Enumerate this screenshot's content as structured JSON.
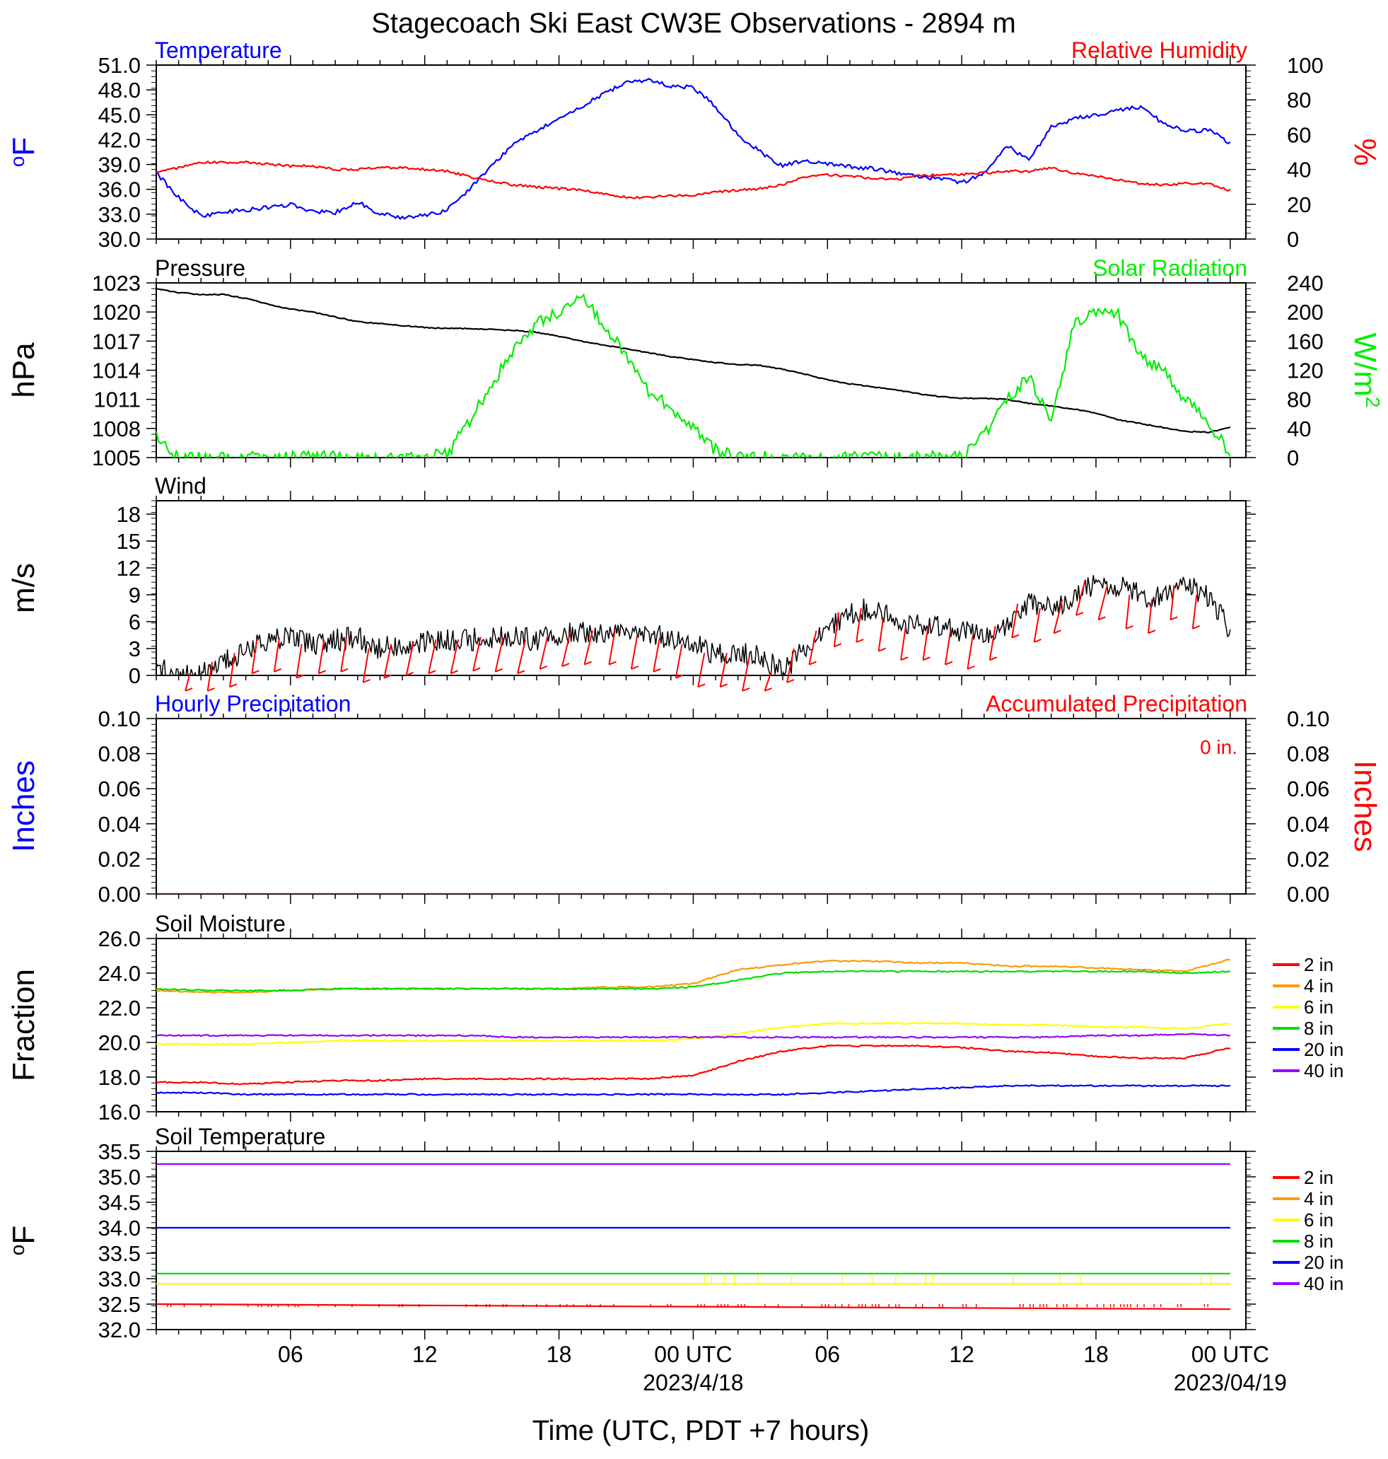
{
  "title": "Stagecoach Ski East CW3E Observations - 2894 m",
  "xaxis": {
    "ticks": [
      "06",
      "12",
      "18",
      "00 UTC",
      "06",
      "12",
      "18",
      "00 UTC"
    ],
    "dates": [
      "2023/4/18",
      "2023/04/19"
    ],
    "label": "Time (UTC, PDT +7 hours)"
  },
  "colors": {
    "temp": "#0000ff",
    "rh": "#ff0000",
    "pressure": "#000000",
    "solar": "#00ee00",
    "wind": "#000000",
    "barb": "#ff0000",
    "d2": "#ff0000",
    "d4": "#ff9900",
    "d6": "#ffff00",
    "d8": "#00dd00",
    "d20": "#0000ff",
    "d40": "#9900ff"
  },
  "chart_data": [
    {
      "type": "line",
      "title_left": "Temperature",
      "title_right": "Relative Humidity",
      "ylabel_left": "oF",
      "ylabel_right": "%",
      "ylim_left": [
        30,
        51
      ],
      "ylim_right": [
        0,
        100
      ],
      "yticks_left": [
        "51.0",
        "48.0",
        "45.0",
        "42.0",
        "39.0",
        "36.0",
        "33.0",
        "30.0"
      ],
      "yticks_right": [
        "100",
        "80",
        "60",
        "40",
        "20",
        "0"
      ],
      "x_hours": [
        0,
        1,
        2,
        3,
        4,
        5,
        6,
        7,
        8,
        9,
        10,
        11,
        12,
        13,
        14,
        15,
        16,
        17,
        18,
        19,
        20,
        21,
        22,
        23,
        24,
        25,
        26,
        27,
        28,
        29,
        30,
        31,
        32,
        33,
        34,
        35,
        36,
        37,
        38,
        39,
        40,
        41,
        42,
        43,
        44,
        45,
        46,
        47,
        48
      ],
      "series": [
        {
          "name": "Temperature",
          "axis": "left",
          "values": [
            38.0,
            35.0,
            32.8,
            33.3,
            33.5,
            33.8,
            34.2,
            33.3,
            33.2,
            34.5,
            33.0,
            32.6,
            32.8,
            33.5,
            36.0,
            38.8,
            41.5,
            43.0,
            44.5,
            46.0,
            47.5,
            49.0,
            49.2,
            48.5,
            48.3,
            46.0,
            42.5,
            40.5,
            38.8,
            39.5,
            39.0,
            38.7,
            38.5,
            38.0,
            37.5,
            37.3,
            36.8,
            38.0,
            41.3,
            39.5,
            43.5,
            44.5,
            45.0,
            45.5,
            46.0,
            44.0,
            43.0,
            43.2,
            41.6
          ]
        },
        {
          "name": "Relative Humidity",
          "axis": "right",
          "values": [
            38,
            41,
            44,
            44,
            44,
            43,
            42,
            42,
            40,
            40,
            41,
            41,
            40,
            39,
            36,
            33,
            31,
            30,
            29,
            28,
            26,
            24,
            24,
            25,
            25,
            27,
            28,
            29,
            31,
            36,
            37,
            36,
            35,
            34,
            36,
            37,
            37,
            38,
            39,
            39,
            41,
            38,
            36,
            34,
            32,
            31,
            32,
            32,
            28
          ]
        }
      ]
    },
    {
      "type": "line",
      "title_left": "Pressure",
      "title_right": "Solar Radiation",
      "ylabel_left": "hPa",
      "ylabel_right": "W/m2",
      "ylim_left": [
        1005,
        1023
      ],
      "ylim_right": [
        0,
        240
      ],
      "yticks_left": [
        "1023",
        "1020",
        "1017",
        "1014",
        "1011",
        "1008",
        "1005"
      ],
      "yticks_right": [
        "240",
        "200",
        "160",
        "120",
        "80",
        "40",
        "0"
      ],
      "x_hours": [
        0,
        1,
        2,
        3,
        4,
        5,
        6,
        7,
        8,
        9,
        10,
        11,
        12,
        13,
        14,
        15,
        16,
        17,
        18,
        19,
        20,
        21,
        22,
        23,
        24,
        25,
        26,
        27,
        28,
        29,
        30,
        31,
        32,
        33,
        34,
        35,
        36,
        37,
        38,
        39,
        40,
        41,
        42,
        43,
        44,
        45,
        46,
        47,
        48
      ],
      "series": [
        {
          "name": "Pressure",
          "axis": "left",
          "values": [
            1022.4,
            1022.0,
            1021.8,
            1021.8,
            1021.4,
            1020.8,
            1020.3,
            1020.0,
            1019.5,
            1019.0,
            1018.8,
            1018.6,
            1018.4,
            1018.3,
            1018.3,
            1018.2,
            1018.1,
            1017.9,
            1017.5,
            1017.0,
            1016.6,
            1016.2,
            1015.8,
            1015.4,
            1015.1,
            1014.8,
            1014.6,
            1014.5,
            1014.1,
            1013.6,
            1013.0,
            1012.6,
            1012.3,
            1012.0,
            1011.6,
            1011.3,
            1011.1,
            1011.1,
            1011.0,
            1010.6,
            1010.3,
            1010.0,
            1009.6,
            1008.9,
            1008.5,
            1008.1,
            1007.7,
            1007.6,
            1008.1
          ]
        },
        {
          "name": "Solar Radiation",
          "axis": "right",
          "values": [
            28,
            0,
            0,
            0,
            0,
            0,
            0,
            0,
            0,
            0,
            0,
            0,
            0,
            5,
            50,
            100,
            150,
            185,
            200,
            220,
            185,
            140,
            90,
            70,
            40,
            10,
            0,
            0,
            0,
            0,
            0,
            0,
            0,
            0,
            0,
            0,
            0,
            30,
            80,
            110,
            50,
            180,
            200,
            195,
            140,
            120,
            80,
            50,
            5
          ]
        }
      ]
    },
    {
      "type": "line",
      "title_left": "Wind",
      "ylabel_left": "m/s",
      "ylim_left": [
        0,
        19.5
      ],
      "yticks_left": [
        "18",
        "15",
        "12",
        "9",
        "6",
        "3",
        "0"
      ],
      "x_hours": [
        0,
        1,
        2,
        3,
        4,
        5,
        6,
        7,
        8,
        9,
        10,
        11,
        12,
        13,
        14,
        15,
        16,
        17,
        18,
        19,
        20,
        21,
        22,
        23,
        24,
        25,
        26,
        27,
        28,
        29,
        30,
        31,
        32,
        33,
        34,
        35,
        36,
        37,
        38,
        39,
        40,
        41,
        42,
        43,
        44,
        45,
        46,
        47,
        48
      ],
      "series": [
        {
          "name": "Wind speed",
          "axis": "left",
          "values": [
            0.8,
            0.3,
            0.2,
            1.5,
            2.5,
            4.0,
            4.2,
            3.5,
            4.0,
            4.2,
            3.0,
            3.5,
            3.8,
            4.0,
            4.0,
            4.3,
            4.2,
            4.0,
            4.5,
            4.8,
            5.0,
            5.0,
            4.5,
            4.2,
            3.5,
            2.5,
            2.5,
            2.0,
            0.5,
            3.0,
            5.0,
            7.0,
            7.5,
            6.5,
            5.5,
            5.5,
            5.0,
            4.5,
            5.5,
            8.0,
            7.5,
            8.5,
            10.5,
            10.0,
            9.0,
            8.5,
            10.0,
            9.0,
            5.0
          ]
        }
      ]
    },
    {
      "type": "line",
      "title_left": "Hourly Precipitation",
      "title_right": "Accumulated Precipitation",
      "annotation": "0 in.",
      "ylabel_left": "Inches",
      "ylabel_right": "Inches",
      "ylim_left": [
        0,
        0.1
      ],
      "ylim_right": [
        0,
        0.1
      ],
      "yticks_left": [
        "0.10",
        "0.08",
        "0.06",
        "0.04",
        "0.02",
        "0.00"
      ],
      "yticks_right": [
        "0.10",
        "0.08",
        "0.06",
        "0.04",
        "0.02",
        "0.00"
      ],
      "x_hours": [
        0,
        48
      ],
      "series": [
        {
          "name": "Hourly Precipitation",
          "axis": "left",
          "values": [
            0,
            0
          ]
        },
        {
          "name": "Accumulated Precipitation",
          "axis": "right",
          "values": [
            0,
            0
          ]
        }
      ]
    },
    {
      "type": "line",
      "title_left": "Soil Moisture",
      "ylabel_left": "Fraction",
      "ylim_left": [
        16,
        26
      ],
      "yticks_left": [
        "26.0",
        "24.0",
        "22.0",
        "20.0",
        "18.0",
        "16.0"
      ],
      "legend": [
        "2 in",
        "4 in",
        "6 in",
        "8 in",
        "20 in",
        "40 in"
      ],
      "x_hours": [
        0,
        2,
        4,
        6,
        8,
        10,
        12,
        14,
        16,
        18,
        20,
        22,
        24,
        26,
        28,
        30,
        32,
        34,
        36,
        38,
        40,
        42,
        44,
        46,
        48
      ],
      "series": [
        {
          "name": "2 in",
          "values": [
            17.7,
            17.7,
            17.6,
            17.7,
            17.8,
            17.8,
            17.9,
            17.9,
            17.9,
            17.9,
            17.9,
            17.9,
            18.1,
            18.9,
            19.5,
            19.8,
            19.8,
            19.8,
            19.7,
            19.5,
            19.4,
            19.2,
            19.1,
            19.1,
            19.7
          ]
        },
        {
          "name": "4 in",
          "values": [
            23.0,
            22.9,
            22.9,
            23.0,
            23.1,
            23.1,
            23.1,
            23.1,
            23.1,
            23.1,
            23.2,
            23.2,
            23.4,
            24.2,
            24.5,
            24.7,
            24.7,
            24.6,
            24.6,
            24.4,
            24.4,
            24.3,
            24.2,
            24.1,
            24.8
          ]
        },
        {
          "name": "6 in",
          "values": [
            19.9,
            19.9,
            19.9,
            20.0,
            20.1,
            20.1,
            20.1,
            20.1,
            20.1,
            20.1,
            20.1,
            20.1,
            20.2,
            20.5,
            20.9,
            21.1,
            21.1,
            21.1,
            21.1,
            21.0,
            21.0,
            20.9,
            20.9,
            20.8,
            21.1
          ]
        },
        {
          "name": "8 in",
          "values": [
            23.1,
            23.0,
            23.0,
            23.0,
            23.1,
            23.1,
            23.1,
            23.1,
            23.1,
            23.1,
            23.1,
            23.1,
            23.2,
            23.6,
            24.0,
            24.1,
            24.1,
            24.1,
            24.1,
            24.1,
            24.1,
            24.1,
            24.1,
            24.0,
            24.1
          ]
        },
        {
          "name": "20 in",
          "values": [
            17.1,
            17.1,
            17.0,
            17.0,
            17.0,
            17.0,
            17.0,
            17.0,
            17.0,
            17.0,
            17.0,
            17.0,
            17.0,
            17.0,
            17.0,
            17.1,
            17.2,
            17.3,
            17.4,
            17.5,
            17.5,
            17.5,
            17.5,
            17.5,
            17.5
          ]
        },
        {
          "name": "40 in",
          "values": [
            20.4,
            20.4,
            20.4,
            20.4,
            20.4,
            20.4,
            20.4,
            20.4,
            20.3,
            20.3,
            20.3,
            20.3,
            20.3,
            20.3,
            20.3,
            20.3,
            20.3,
            20.3,
            20.3,
            20.3,
            20.3,
            20.4,
            20.4,
            20.5,
            20.4
          ]
        }
      ]
    },
    {
      "type": "line",
      "title_left": "Soil Temperature",
      "ylabel_left": "oF",
      "ylim_left": [
        32,
        35.5
      ],
      "yticks_left": [
        "35.5",
        "35.0",
        "34.5",
        "34.0",
        "33.5",
        "33.0",
        "32.5",
        "32.0"
      ],
      "legend": [
        "2 in",
        "4 in",
        "6 in",
        "8 in",
        "20 in",
        "40 in"
      ],
      "x_hours": [
        0,
        48
      ],
      "series": [
        {
          "name": "2 in",
          "values": [
            32.5,
            32.4
          ]
        },
        {
          "name": "4 in",
          "values": [
            32.9,
            32.9
          ]
        },
        {
          "name": "6 in",
          "values": [
            32.9,
            32.9
          ]
        },
        {
          "name": "8 in",
          "values": [
            33.1,
            33.1
          ]
        },
        {
          "name": "20 in",
          "values": [
            34.0,
            34.0
          ]
        },
        {
          "name": "40 in",
          "values": [
            35.25,
            35.25
          ]
        }
      ]
    }
  ]
}
